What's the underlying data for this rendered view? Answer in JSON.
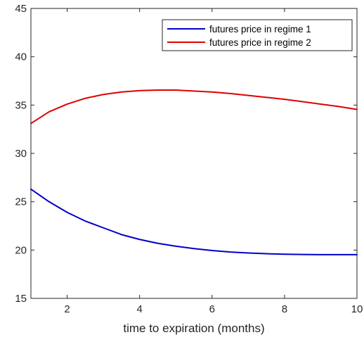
{
  "chart_data": {
    "type": "line",
    "title": "",
    "xlabel": "time to expiration (months)",
    "ylabel": "",
    "xlim": [
      1,
      10
    ],
    "ylim": [
      15,
      45
    ],
    "xticks": [
      2,
      4,
      6,
      8,
      10
    ],
    "yticks": [
      15,
      20,
      25,
      30,
      35,
      40,
      45
    ],
    "grid": false,
    "legend_position": "top-right",
    "x": [
      1,
      1.5,
      2,
      2.5,
      3,
      3.5,
      4,
      4.5,
      5,
      5.5,
      6,
      6.5,
      7,
      7.5,
      8,
      8.5,
      9,
      9.5,
      10
    ],
    "series": [
      {
        "name": "futures price in regime 1",
        "color": "#0000cc",
        "values": [
          26.3,
          25.0,
          23.9,
          23.0,
          22.3,
          21.6,
          21.1,
          20.7,
          20.4,
          20.15,
          19.95,
          19.8,
          19.7,
          19.62,
          19.57,
          19.54,
          19.52,
          19.52,
          19.52
        ]
      },
      {
        "name": "futures price in regime 2",
        "color": "#e00000",
        "values": [
          33.1,
          34.3,
          35.1,
          35.7,
          36.1,
          36.35,
          36.5,
          36.55,
          36.55,
          36.45,
          36.35,
          36.2,
          36.0,
          35.8,
          35.6,
          35.35,
          35.1,
          34.85,
          34.55
        ]
      }
    ]
  }
}
